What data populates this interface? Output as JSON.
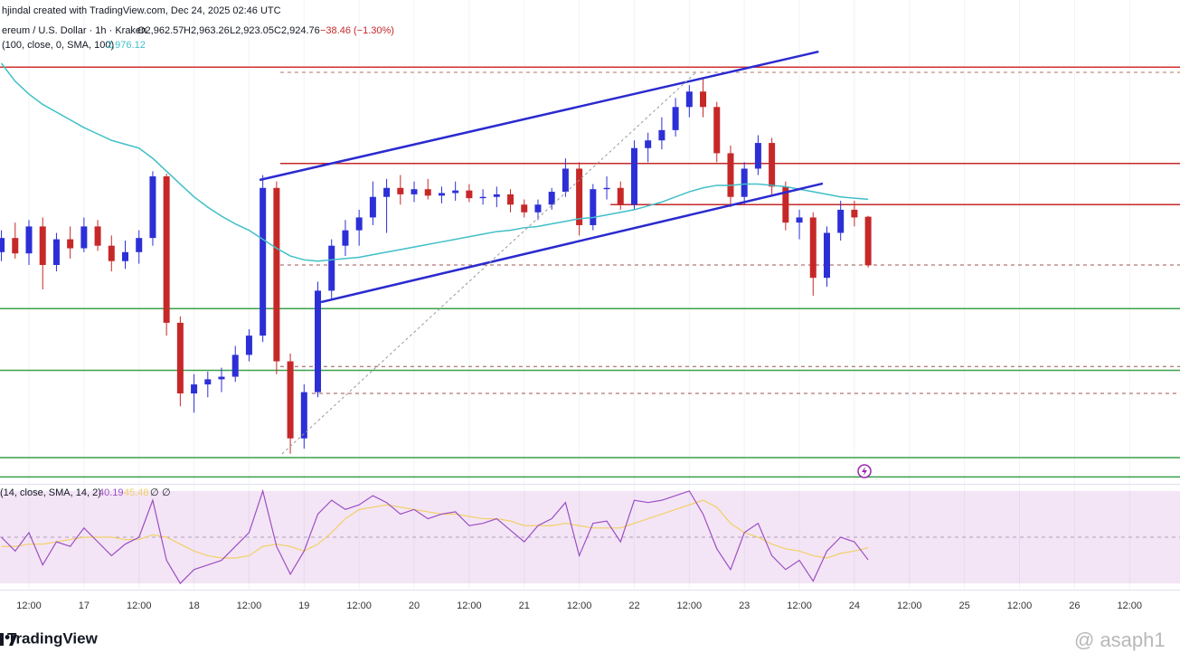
{
  "header": {
    "created": "hjindal created with TradingView.com, Dec 24, 2025 02:46 UTC",
    "symbol": "ereum / U.S. Dollar · 1h · Kraken",
    "open": "O2,962.57",
    "high": "H2,963.26",
    "low": "L2,923.05",
    "close": "C2,924.76",
    "change": "−38.46 (−1.30%)",
    "ma_params": "(100, close, 0, SMA, 100)",
    "ma_value": "2,976.12",
    "rsi_params": "(14, close, SMA, 14, 2)",
    "rsi_value": "40.19",
    "rsi_sma_value": "45.48",
    "rsi_extra1": "∅",
    "rsi_extra2": "∅"
  },
  "footer": {
    "brand": "TradingView",
    "watermark": "@ asaph1"
  },
  "chart_data": [
    {
      "type": "candlestick",
      "xlim": [
        5.69,
        263
      ],
      "ylim": [
        2754.6,
        3131.3
      ],
      "up_color": "#2d2fd6",
      "down_color": "#c62828",
      "x": [
        6,
        9,
        12,
        15,
        18,
        21,
        24,
        27,
        30,
        33,
        36,
        39,
        42,
        45,
        48,
        51,
        54,
        57,
        60,
        63,
        66,
        69,
        72,
        75,
        78,
        81,
        84,
        87,
        90,
        93,
        96,
        99,
        102,
        105,
        108,
        111,
        114,
        117,
        120,
        123,
        126,
        129,
        132,
        135,
        138,
        141,
        144,
        147,
        150,
        153,
        156,
        159,
        162,
        165,
        168,
        171,
        174,
        177,
        180,
        183,
        186,
        189,
        192,
        195
      ],
      "open": [
        2935,
        2946,
        2934,
        2955,
        2925,
        2945,
        2938,
        2955,
        2940,
        2928,
        2935,
        2946,
        2994,
        2880,
        2825,
        2832,
        2836,
        2838,
        2855,
        2870,
        2985,
        2850,
        2790,
        2826,
        2905,
        2940,
        2952,
        2962,
        2978,
        2985,
        2980,
        2984,
        2979,
        2981,
        2983,
        2977,
        2978,
        2980,
        2972,
        2966,
        2972,
        2982,
        3000,
        2956,
        2984,
        2985,
        2972,
        3016,
        3022,
        3030,
        3048,
        3060,
        3048,
        3012,
        2978,
        3000,
        3020,
        2986,
        2958,
        2962,
        2915,
        2950,
        2968,
        2962.57
      ],
      "high": [
        2952,
        2958,
        2960,
        2962,
        2950,
        2955,
        2962,
        2960,
        2948,
        2944,
        2952,
        2998,
        2996,
        2885,
        2840,
        2842,
        2845,
        2862,
        2875,
        2995,
        2990,
        2856,
        2832,
        2912,
        2945,
        2960,
        2968,
        2990,
        2992,
        2995,
        2990,
        2992,
        2986,
        2990,
        2988,
        2984,
        2986,
        2984,
        2976,
        2976,
        2985,
        3008,
        3005,
        2988,
        2994,
        2990,
        3022,
        3028,
        3040,
        3055,
        3065,
        3070,
        3052,
        3018,
        3005,
        3026,
        3024,
        2990,
        2968,
        2966,
        2955,
        2975,
        2975,
        2963.26
      ],
      "low": [
        2928,
        2930,
        2925,
        2906,
        2920,
        2930,
        2935,
        2936,
        2920,
        2922,
        2926,
        2940,
        2870,
        2815,
        2810,
        2822,
        2826,
        2834,
        2850,
        2865,
        2840,
        2778,
        2782,
        2822,
        2898,
        2932,
        2940,
        2956,
        2950,
        2972,
        2974,
        2976,
        2973,
        2975,
        2974,
        2972,
        2970,
        2966,
        2962,
        2960,
        2968,
        2978,
        2948,
        2952,
        2976,
        2968,
        2968,
        3005,
        3015,
        3025,
        3040,
        3040,
        3005,
        2970,
        2972,
        2995,
        2980,
        2952,
        2945,
        2901,
        2908,
        2944,
        2955,
        2923.05
      ],
      "close": [
        2946,
        2934,
        2955,
        2925,
        2945,
        2938,
        2955,
        2940,
        2928,
        2935,
        2946,
        2994,
        2880,
        2825,
        2832,
        2836,
        2838,
        2855,
        2870,
        2985,
        2850,
        2790,
        2826,
        2905,
        2940,
        2952,
        2962,
        2978,
        2985,
        2980,
        2984,
        2979,
        2981,
        2983,
        2977,
        2978,
        2980,
        2972,
        2966,
        2972,
        2982,
        3000,
        2956,
        2984,
        2985,
        2972,
        3016,
        3022,
        3030,
        3048,
        3060,
        3048,
        3012,
        2978,
        3000,
        3020,
        2986,
        2958,
        2962,
        2915,
        2950,
        2968,
        2962,
        2924.76
      ],
      "series": [
        {
          "color": "#3fbfc7",
          "values": [
            3082,
            3068,
            3058,
            3050,
            3044,
            3038,
            3032,
            3027,
            3022,
            3019,
            3016,
            3008,
            2998,
            2988,
            2978,
            2970,
            2963,
            2957,
            2952,
            2945,
            2938,
            2932,
            2929,
            2928,
            2929,
            2930,
            2931,
            2933,
            2935,
            2937,
            2939,
            2941,
            2943,
            2945,
            2947,
            2949,
            2951,
            2952,
            2954,
            2955,
            2957,
            2959,
            2961,
            2962,
            2964,
            2966,
            2968,
            2971,
            2974,
            2978,
            2982,
            2985,
            2987,
            2987,
            2988,
            2988,
            2987,
            2986,
            2984,
            2982,
            2980,
            2978,
            2977,
            2976.12
          ]
        }
      ],
      "hlines": [
        {
          "value": 3079,
          "color": "#d32f2f"
        },
        {
          "value": 3004,
          "color": "#c62828",
          "from": 66.8
        },
        {
          "value": 2972,
          "color": "#c62828",
          "from": 138.8
        },
        {
          "value": 3075,
          "color": "#b07060",
          "dashed": true,
          "from": 66.8
        },
        {
          "value": 2925,
          "color": "#a05050",
          "dashed": true,
          "from": 66.8
        },
        {
          "value": 2846,
          "color": "#a05050",
          "dashed": true,
          "from": 66.8
        },
        {
          "value": 2825,
          "color": "#a05050",
          "dashed": true,
          "from": 73.7
        },
        {
          "value": 2891,
          "color": "#3aa04a"
        },
        {
          "value": 2843,
          "color": "#3aa04a"
        },
        {
          "value": 2775,
          "color": "#3aa04a"
        },
        {
          "value": 2760,
          "color": "#3aa04a"
        }
      ],
      "trendlines": [
        {
          "x": [
            62.3,
            184.2
          ],
          "y": [
            2991.2,
            3091.1
          ],
          "color": "#2a2ad0"
        },
        {
          "x": [
            75.7,
            185.1
          ],
          "y": [
            2896.1,
            2988.4
          ],
          "color": "#2a2ad0"
        },
        {
          "x": [
            67.2,
            157.5
          ],
          "y": [
            2777.9,
            3075
          ],
          "color": "#999999",
          "dashed": true
        }
      ],
      "xticks": [
        {
          "value": 12,
          "label": "12:00"
        },
        {
          "value": 24,
          "label": "17"
        },
        {
          "value": 36,
          "label": "12:00"
        },
        {
          "value": 48,
          "label": "18"
        },
        {
          "value": 60,
          "label": "12:00"
        },
        {
          "value": 72,
          "label": "19"
        },
        {
          "value": 84,
          "label": "12:00"
        },
        {
          "value": 96,
          "label": "20"
        },
        {
          "value": 108,
          "label": "12:00"
        },
        {
          "value": 120,
          "label": "21"
        },
        {
          "value": 132,
          "label": "12:00"
        },
        {
          "value": 144,
          "label": "22"
        },
        {
          "value": 156,
          "label": "12:00"
        },
        {
          "value": 168,
          "label": "23"
        },
        {
          "value": 180,
          "label": "12:00"
        },
        {
          "value": 192,
          "label": "24"
        },
        {
          "value": 204,
          "label": "12:00"
        },
        {
          "value": 216,
          "label": "25"
        },
        {
          "value": 228,
          "label": "12:00"
        },
        {
          "value": 240,
          "label": "26"
        },
        {
          "value": 252,
          "label": "12:00"
        }
      ]
    },
    {
      "type": "line",
      "ylim": [
        27.3,
        73.1
      ],
      "band": [
        30,
        70
      ],
      "midline": 50,
      "x": [
        6,
        9,
        12,
        15,
        18,
        21,
        24,
        27,
        30,
        33,
        36,
        39,
        42,
        45,
        48,
        51,
        54,
        57,
        60,
        63,
        66,
        69,
        72,
        75,
        78,
        81,
        84,
        87,
        90,
        93,
        96,
        99,
        102,
        105,
        108,
        111,
        114,
        117,
        120,
        123,
        126,
        129,
        132,
        135,
        138,
        141,
        144,
        147,
        150,
        153,
        156,
        159,
        162,
        165,
        168,
        171,
        174,
        177,
        180,
        183,
        186,
        189,
        192,
        195
      ],
      "series": [
        {
          "color": "#9c4fc4",
          "values": [
            50,
            44,
            52,
            38,
            48,
            46,
            54,
            48,
            42,
            47,
            50,
            66,
            40,
            30,
            36,
            38,
            40,
            46,
            52,
            70,
            46,
            34,
            44,
            60,
            66,
            62,
            64,
            68,
            65,
            60,
            62,
            58,
            60,
            61,
            55,
            56,
            58,
            53,
            48,
            55,
            58,
            65,
            42,
            56,
            57,
            48,
            66,
            65,
            66,
            68,
            70,
            60,
            45,
            36,
            52,
            56,
            42,
            36,
            40,
            31,
            44,
            50,
            48,
            40.19
          ]
        },
        {
          "color": "#f2d067",
          "values": [
            46,
            46,
            47,
            47,
            48,
            49,
            50,
            50,
            50,
            49,
            49,
            51,
            50,
            47,
            44,
            42,
            41,
            41,
            42,
            46,
            47,
            46,
            44,
            47,
            52,
            58,
            62,
            63,
            64,
            63,
            62,
            61,
            60,
            60,
            59,
            58,
            58,
            57,
            55,
            55,
            55,
            56,
            55,
            54,
            54,
            54,
            56,
            58,
            60,
            62,
            64,
            66,
            63,
            56,
            52,
            50,
            47,
            45,
            44,
            42,
            41,
            43,
            44,
            45.48
          ]
        }
      ]
    }
  ]
}
